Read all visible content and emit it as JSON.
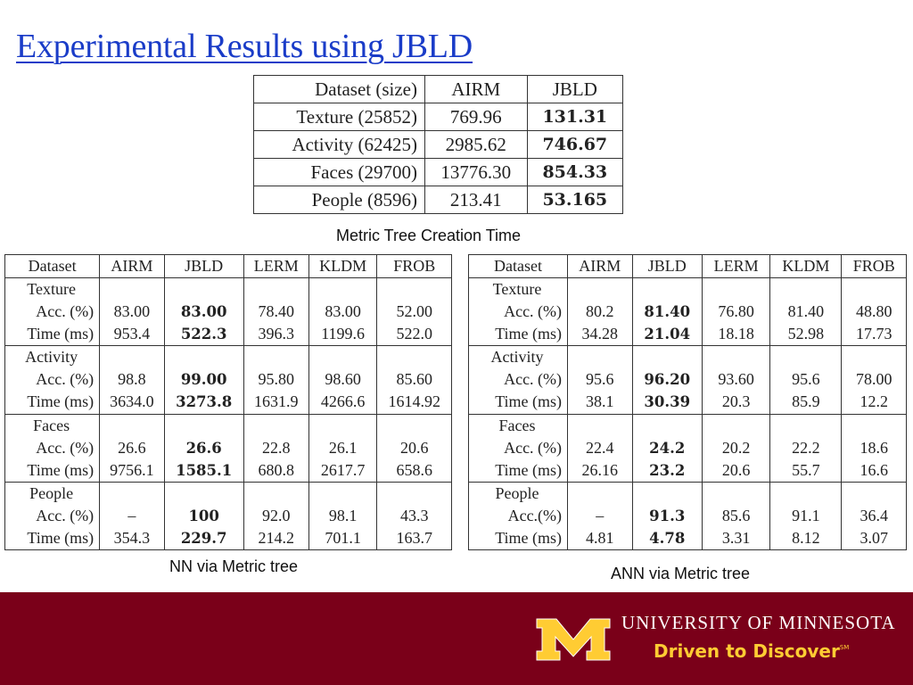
{
  "slide": {
    "title": "Experimental Results using JBLD"
  },
  "creation_table": {
    "headers": [
      "Dataset (size)",
      "AIRM",
      "JBLD"
    ],
    "rows": [
      {
        "label": "Texture (25852)",
        "airm": "769.96",
        "jbld": "131.31"
      },
      {
        "label": "Activity (62425)",
        "airm": "2985.62",
        "jbld": "746.67"
      },
      {
        "label": "Faces (29700)",
        "airm": "13776.30",
        "jbld": "854.33"
      },
      {
        "label": "People (8596)",
        "airm": "213.41",
        "jbld": "53.165"
      }
    ],
    "caption": "Metric Tree Creation Time"
  },
  "nn_table": {
    "headers": [
      "Dataset",
      "AIRM",
      "JBLD",
      "LERM",
      "KLDM",
      "FROB"
    ],
    "groups": [
      {
        "name": "Texture",
        "acc_label": "Acc. (%)",
        "time_label": "Time (ms)",
        "acc": [
          "83.00",
          "83.00",
          "78.40",
          "83.00",
          "52.00"
        ],
        "time": [
          "953.4",
          "522.3",
          "396.3",
          "1199.6",
          "522.0"
        ]
      },
      {
        "name": "Activity",
        "acc_label": "Acc. (%)",
        "time_label": "Time (ms)",
        "acc": [
          "98.8",
          "99.00",
          "95.80",
          "98.60",
          "85.60"
        ],
        "time": [
          "3634.0",
          "3273.8",
          "1631.9",
          "4266.6",
          "1614.92"
        ]
      },
      {
        "name": "Faces",
        "acc_label": "Acc. (%)",
        "time_label": "Time (ms)",
        "acc": [
          "26.6",
          "26.6",
          "22.8",
          "26.1",
          "20.6"
        ],
        "time": [
          "9756.1",
          "1585.1",
          "680.8",
          "2617.7",
          "658.6"
        ]
      },
      {
        "name": "People",
        "acc_label": "Acc. (%)",
        "time_label": "Time (ms)",
        "acc": [
          "–",
          "100",
          "92.0",
          "98.1",
          "43.3"
        ],
        "time": [
          "354.3",
          "229.7",
          "214.2",
          "701.1",
          "163.7"
        ]
      }
    ],
    "caption": "NN via Metric tree"
  },
  "ann_table": {
    "headers": [
      "Dataset",
      "AIRM",
      "JBLD",
      "LERM",
      "KLDM",
      "FROB"
    ],
    "groups": [
      {
        "name": "Texture",
        "acc_label": "Acc. (%)",
        "time_label": "Time (ms)",
        "acc": [
          "80.2",
          "81.40",
          "76.80",
          "81.40",
          "48.80"
        ],
        "time": [
          "34.28",
          "21.04",
          "18.18",
          "52.98",
          "17.73"
        ]
      },
      {
        "name": "Activity",
        "acc_label": "Acc. (%)",
        "time_label": "Time (ms)",
        "acc": [
          "95.6",
          "96.20",
          "93.60",
          "95.6",
          "78.00"
        ],
        "time": [
          "38.1",
          "30.39",
          "20.3",
          "85.9",
          "12.2"
        ]
      },
      {
        "name": "Faces",
        "acc_label": "Acc. (%)",
        "time_label": "Time (ms)",
        "acc": [
          "22.4",
          "24.2",
          "20.2",
          "22.2",
          "18.6"
        ],
        "time": [
          "26.16",
          "23.2",
          "20.6",
          "55.7",
          "16.6"
        ]
      },
      {
        "name": "People",
        "acc_label": "Acc.(%)",
        "time_label": "Time (ms)",
        "acc": [
          "–",
          "91.3",
          "85.6",
          "91.1",
          "36.4"
        ],
        "time": [
          "4.81",
          "4.78",
          "3.31",
          "8.12",
          "3.07"
        ]
      }
    ],
    "caption": "ANN via Metric tree"
  },
  "footer": {
    "university": "UNIVERSITY OF MINNESOTA",
    "tagline": "Driven to Discover",
    "tagline_mark": "SM",
    "logo_letter": "M",
    "colors": {
      "maroon": "#7a0019",
      "gold": "#ffcc33"
    }
  }
}
